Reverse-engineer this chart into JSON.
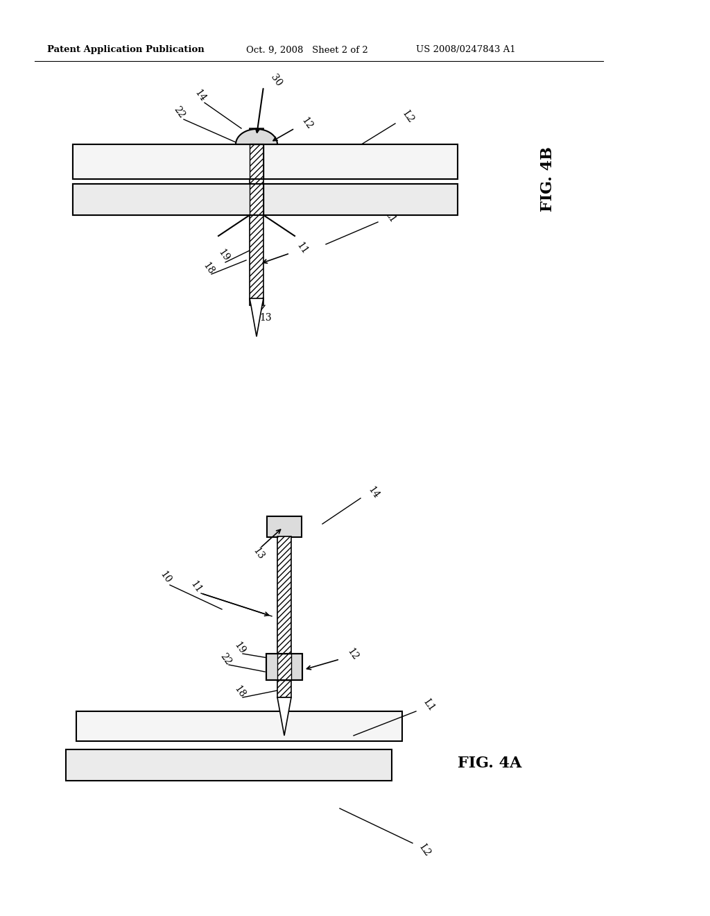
{
  "bg_color": "#ffffff",
  "header_text1": "Patent Application Publication",
  "header_text2": "Oct. 9, 2008   Sheet 2 of 2",
  "header_text3": "US 2008/0247843 A1",
  "fig4b_label": "FIG. 4B",
  "fig4a_label": "FIG. 4A",
  "line_color": "#000000",
  "plate_fill": "#f5f5f5",
  "plate_fill2": "#ebebeb",
  "shaft_hatch": "////",
  "cap_fill": "#dcdcdc",
  "washer_fill": "#dcdcdc"
}
